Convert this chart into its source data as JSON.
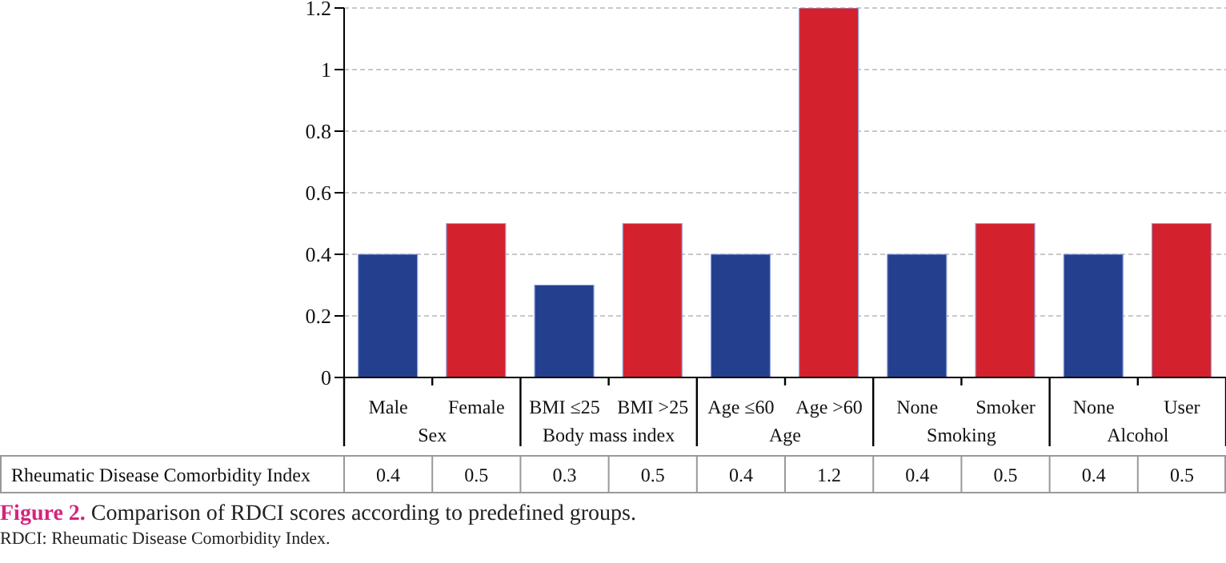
{
  "chart_data": {
    "type": "bar",
    "title": "Figure 2. Comparison of RDCI scores according to predefined groups.",
    "categories": [
      "Male",
      "Female",
      "BMI ≤25",
      "BMI >25",
      "Age ≤60",
      "Age >60",
      "None",
      "Smoker",
      "None",
      "User"
    ],
    "series": [
      {
        "name": "Rheumatic Disease Comorbidity Index",
        "colors": [
          "#243f8e",
          "#d3222e",
          "#243f8e",
          "#d3222e",
          "#243f8e",
          "#d3222e",
          "#243f8e",
          "#d3222e",
          "#243f8e",
          "#d3222e"
        ],
        "values": [
          0.4,
          0.5,
          0.3,
          0.5,
          0.4,
          1.2,
          0.4,
          0.5,
          0.4,
          0.5
        ]
      }
    ],
    "annotations": [
      "Sex",
      "Body mass index",
      "Age",
      "Smoking",
      "Alcohol",
      "RDCI: Rheumatic Disease Comorbidity Index."
    ],
    "ylim": [
      0,
      1.2
    ],
    "yticks": [
      0,
      0.2,
      0.4,
      0.6,
      0.8,
      1,
      1.2
    ],
    "grid": "y",
    "data_labels": true
  }
}
